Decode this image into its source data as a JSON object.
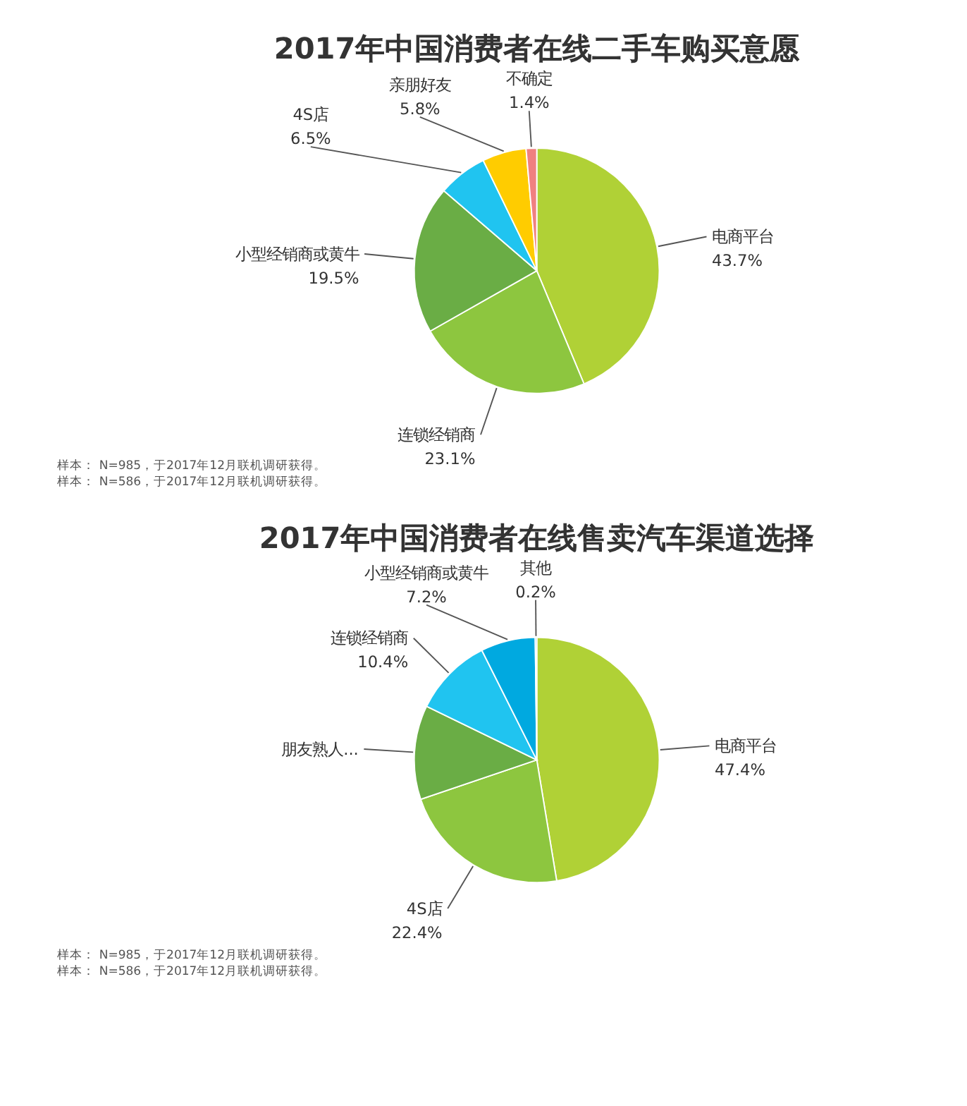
{
  "chart_data": [
    {
      "type": "pie",
      "title": "2017年中国消费者在线二手车购买意愿",
      "categories": [
        "电商平台",
        "连锁经销商",
        "小型经销商或黄牛",
        "4S店",
        "亲朋好友",
        "不确定"
      ],
      "values": [
        43.7,
        23.1,
        19.5,
        6.5,
        5.8,
        1.4
      ],
      "colors": [
        "#b0d136",
        "#8dc63f",
        "#6aad45",
        "#20c4f0",
        "#ffcc00",
        "#f08080"
      ],
      "value_labels": [
        "43.7%",
        "23.1%",
        "19.5%",
        "6.5%",
        "5.8%",
        "1.4%"
      ],
      "annotations": [
        "样本： N=985，于2017年12月联机调研获得。",
        "样本： N=586，于2017年12月联机调研获得。"
      ]
    },
    {
      "type": "pie",
      "title": "2017年中国消费者在线售卖汽车渠道选择",
      "categories": [
        "电商平台",
        "4S店",
        "朋友熟人...",
        "连锁经销商",
        "小型经销商或黄牛",
        "其他"
      ],
      "values": [
        47.4,
        22.4,
        12.4,
        10.4,
        7.2,
        0.2
      ],
      "colors": [
        "#b0d136",
        "#8dc63f",
        "#6aad45",
        "#20c4f0",
        "#00a9e0",
        "#0090d0"
      ],
      "value_labels": [
        "47.4%",
        "22.4%",
        null,
        "10.4%",
        "7.2%",
        "0.2%"
      ],
      "annotations": [
        "样本： N=985，于2017年12月联机调研获得。",
        "样本： N=586，于2017年12月联机调研获得。"
      ]
    }
  ]
}
